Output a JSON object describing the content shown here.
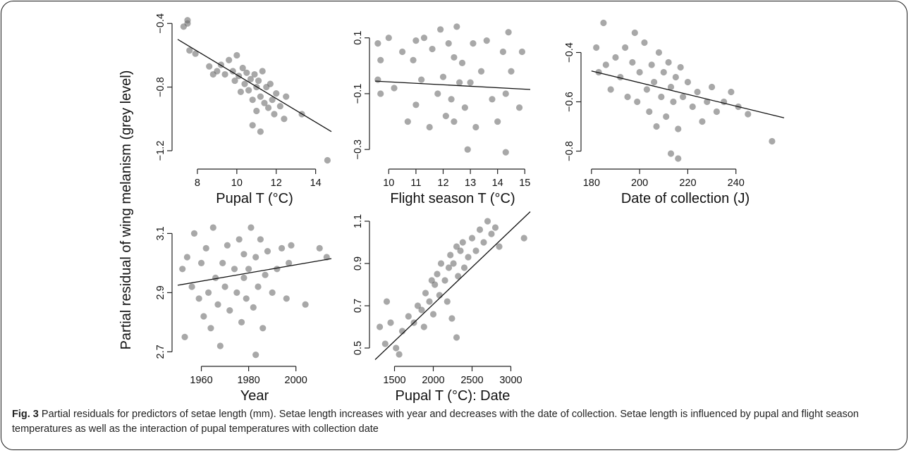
{
  "figure": {
    "ylabel": "Partial residual of wing melanism (grey level)",
    "caption_label": "Fig. 3",
    "caption_text": " Partial residuals for predictors of setae length (mm). Setae length increases with year and decreases with the date of collection. Setae length is influenced by pupal and flight season temperatures as well as the interaction of pupal temperatures with collection date"
  },
  "colors": {
    "point": "#6e6e6e",
    "line": "#111111",
    "axis": "#222222"
  },
  "chart_data": [
    {
      "id": "pupal",
      "type": "scatter",
      "xlabel": "Pupal T (°C)",
      "xlim": [
        7,
        14.8
      ],
      "ylim": [
        -1.28,
        -0.35
      ],
      "xticks": [
        8,
        10,
        12,
        14
      ],
      "xtick_labels": [
        "8",
        "10",
        "12",
        "14"
      ],
      "yticks": [
        -0.4,
        -0.8,
        -1.2
      ],
      "ytick_labels": [
        "−0.4",
        "−0.8",
        "−1.2"
      ],
      "fit_line": [
        [
          7,
          -0.5
        ],
        [
          14.8,
          -1.08
        ]
      ],
      "points": [
        [
          7.3,
          -0.42
        ],
        [
          7.5,
          -0.38
        ],
        [
          7.5,
          -0.4
        ],
        [
          7.6,
          -0.57
        ],
        [
          7.9,
          -0.59
        ],
        [
          8.6,
          -0.67
        ],
        [
          8.8,
          -0.72
        ],
        [
          9.0,
          -0.7
        ],
        [
          9.2,
          -0.66
        ],
        [
          9.4,
          -0.72
        ],
        [
          9.6,
          -0.63
        ],
        [
          9.8,
          -0.7
        ],
        [
          9.9,
          -0.76
        ],
        [
          10.0,
          -0.6
        ],
        [
          10.1,
          -0.73
        ],
        [
          10.2,
          -0.83
        ],
        [
          10.3,
          -0.68
        ],
        [
          10.4,
          -0.78
        ],
        [
          10.5,
          -0.71
        ],
        [
          10.6,
          -0.82
        ],
        [
          10.7,
          -0.75
        ],
        [
          10.8,
          -0.88
        ],
        [
          10.9,
          -0.72
        ],
        [
          11.0,
          -0.8
        ],
        [
          11.0,
          -0.95
        ],
        [
          11.1,
          -0.76
        ],
        [
          11.2,
          -0.86
        ],
        [
          11.3,
          -0.7
        ],
        [
          11.4,
          -0.9
        ],
        [
          11.5,
          -0.8
        ],
        [
          11.6,
          -0.93
        ],
        [
          11.7,
          -0.78
        ],
        [
          11.8,
          -0.88
        ],
        [
          11.9,
          -0.97
        ],
        [
          12.0,
          -0.84
        ],
        [
          12.2,
          -0.92
        ],
        [
          12.4,
          -1.0
        ],
        [
          12.5,
          -0.86
        ],
        [
          13.3,
          -0.97
        ],
        [
          10.8,
          -1.04
        ],
        [
          11.2,
          -1.08
        ],
        [
          14.6,
          -1.26
        ]
      ]
    },
    {
      "id": "flight",
      "type": "scatter",
      "xlabel": "Flight season T (°C)",
      "xlim": [
        9.5,
        15.2
      ],
      "ylim": [
        -0.35,
        0.18
      ],
      "xticks": [
        10,
        11,
        12,
        13,
        14,
        15
      ],
      "xtick_labels": [
        "10",
        "11",
        "12",
        "13",
        "14",
        "15"
      ],
      "yticks": [
        0.1,
        -0.1,
        -0.3
      ],
      "ytick_labels": [
        "0.1",
        "−0.1",
        "−0.3"
      ],
      "fit_line": [
        [
          9.5,
          -0.055
        ],
        [
          15.2,
          -0.085
        ]
      ],
      "points": [
        [
          9.6,
          0.08
        ],
        [
          9.6,
          -0.05
        ],
        [
          9.7,
          -0.1
        ],
        [
          9.7,
          0.02
        ],
        [
          10.0,
          0.1
        ],
        [
          10.2,
          -0.08
        ],
        [
          10.5,
          0.05
        ],
        [
          10.7,
          -0.2
        ],
        [
          10.9,
          0.02
        ],
        [
          11.0,
          0.09
        ],
        [
          11.0,
          -0.14
        ],
        [
          11.2,
          -0.05
        ],
        [
          11.3,
          0.1
        ],
        [
          11.5,
          -0.22
        ],
        [
          11.6,
          0.06
        ],
        [
          11.8,
          -0.1
        ],
        [
          11.9,
          0.13
        ],
        [
          12.0,
          -0.04
        ],
        [
          12.1,
          -0.18
        ],
        [
          12.2,
          0.08
        ],
        [
          12.3,
          -0.12
        ],
        [
          12.4,
          0.03
        ],
        [
          12.4,
          -0.2
        ],
        [
          12.5,
          0.14
        ],
        [
          12.6,
          -0.06
        ],
        [
          12.7,
          0.01
        ],
        [
          12.8,
          -0.15
        ],
        [
          12.9,
          -0.3
        ],
        [
          13.0,
          -0.06
        ],
        [
          13.1,
          0.08
        ],
        [
          13.2,
          -0.22
        ],
        [
          13.4,
          -0.02
        ],
        [
          13.6,
          0.09
        ],
        [
          13.8,
          -0.12
        ],
        [
          14.0,
          -0.2
        ],
        [
          14.2,
          0.05
        ],
        [
          14.3,
          -0.1
        ],
        [
          14.4,
          0.12
        ],
        [
          14.5,
          -0.02
        ],
        [
          14.8,
          -0.15
        ],
        [
          14.9,
          0.05
        ],
        [
          14.3,
          -0.31
        ]
      ]
    },
    {
      "id": "date",
      "type": "scatter",
      "xlabel": "Date of collection (J)",
      "xlim": [
        178,
        260
      ],
      "ylim": [
        -0.85,
        -0.25
      ],
      "xticks": [
        180,
        200,
        220,
        240
      ],
      "xtick_labels": [
        "180",
        "200",
        "220",
        "240"
      ],
      "yticks": [
        -0.4,
        -0.6,
        -0.8
      ],
      "ytick_labels": [
        "−0.4",
        "−0.6",
        "−0.8"
      ],
      "fit_line": [
        [
          180,
          -0.475
        ],
        [
          260,
          -0.665
        ]
      ],
      "points": [
        [
          182,
          -0.38
        ],
        [
          183,
          -0.48
        ],
        [
          185,
          -0.28
        ],
        [
          186,
          -0.45
        ],
        [
          188,
          -0.55
        ],
        [
          190,
          -0.42
        ],
        [
          192,
          -0.5
        ],
        [
          194,
          -0.38
        ],
        [
          195,
          -0.58
        ],
        [
          197,
          -0.44
        ],
        [
          198,
          -0.32
        ],
        [
          199,
          -0.6
        ],
        [
          200,
          -0.48
        ],
        [
          202,
          -0.36
        ],
        [
          203,
          -0.55
        ],
        [
          204,
          -0.64
        ],
        [
          205,
          -0.45
        ],
        [
          206,
          -0.52
        ],
        [
          207,
          -0.7
        ],
        [
          208,
          -0.4
        ],
        [
          209,
          -0.58
        ],
        [
          210,
          -0.48
        ],
        [
          211,
          -0.66
        ],
        [
          212,
          -0.44
        ],
        [
          213,
          -0.54
        ],
        [
          214,
          -0.6
        ],
        [
          215,
          -0.5
        ],
        [
          216,
          -0.71
        ],
        [
          217,
          -0.46
        ],
        [
          218,
          -0.58
        ],
        [
          220,
          -0.52
        ],
        [
          222,
          -0.62
        ],
        [
          224,
          -0.56
        ],
        [
          226,
          -0.68
        ],
        [
          228,
          -0.6
        ],
        [
          230,
          -0.54
        ],
        [
          232,
          -0.64
        ],
        [
          235,
          -0.6
        ],
        [
          238,
          -0.56
        ],
        [
          241,
          -0.62
        ],
        [
          245,
          -0.65
        ],
        [
          255,
          -0.76
        ],
        [
          213,
          -0.81
        ],
        [
          216,
          -0.83
        ]
      ]
    },
    {
      "id": "year",
      "type": "scatter",
      "xlabel": "Year",
      "xlim": [
        1950,
        2015
      ],
      "ylim": [
        2.67,
        3.17
      ],
      "xticks": [
        1960,
        1980,
        2000
      ],
      "xtick_labels": [
        "1960",
        "1980",
        "2000"
      ],
      "yticks": [
        3.1,
        2.9,
        2.7
      ],
      "ytick_labels": [
        "3.1",
        "2.9",
        "2.7"
      ],
      "fit_line": [
        [
          1950,
          2.925
        ],
        [
          2015,
          3.015
        ]
      ],
      "points": [
        [
          1952,
          2.98
        ],
        [
          1953,
          2.75
        ],
        [
          1954,
          3.02
        ],
        [
          1956,
          2.92
        ],
        [
          1957,
          3.1
        ],
        [
          1959,
          2.88
        ],
        [
          1960,
          3.0
        ],
        [
          1961,
          2.82
        ],
        [
          1962,
          3.05
        ],
        [
          1963,
          2.9
        ],
        [
          1964,
          2.78
        ],
        [
          1965,
          3.12
        ],
        [
          1966,
          2.95
        ],
        [
          1967,
          2.86
        ],
        [
          1968,
          2.72
        ],
        [
          1969,
          3.0
        ],
        [
          1970,
          2.92
        ],
        [
          1971,
          3.06
        ],
        [
          1972,
          2.84
        ],
        [
          1974,
          2.98
        ],
        [
          1975,
          2.9
        ],
        [
          1976,
          3.08
        ],
        [
          1977,
          2.8
        ],
        [
          1978,
          2.95
        ],
        [
          1978,
          3.03
        ],
        [
          1979,
          2.88
        ],
        [
          1980,
          2.98
        ],
        [
          1981,
          3.12
        ],
        [
          1982,
          2.85
        ],
        [
          1983,
          3.02
        ],
        [
          1984,
          2.92
        ],
        [
          1985,
          3.08
        ],
        [
          1986,
          2.78
        ],
        [
          1987,
          2.96
        ],
        [
          1988,
          3.04
        ],
        [
          1990,
          2.9
        ],
        [
          1992,
          2.98
        ],
        [
          1994,
          3.05
        ],
        [
          1996,
          2.88
        ],
        [
          1997,
          3.0
        ],
        [
          1998,
          3.06
        ],
        [
          2004,
          2.86
        ],
        [
          2010,
          3.05
        ],
        [
          2013,
          3.02
        ],
        [
          1983,
          2.69
        ]
      ]
    },
    {
      "id": "interaction",
      "type": "scatter",
      "xlabel": "Pupal T (°C): Date",
      "xlim": [
        1250,
        3250
      ],
      "ylim": [
        0.44,
        1.14
      ],
      "xticks": [
        1500,
        2000,
        2500,
        3000
      ],
      "xtick_labels": [
        "1500",
        "2000",
        "2500",
        "3000"
      ],
      "yticks": [
        0.5,
        0.7,
        0.9,
        1.1
      ],
      "ytick_labels": [
        "0.5",
        "0.7",
        "0.9",
        "1.1"
      ],
      "fit_line": [
        [
          1250,
          0.445
        ],
        [
          3250,
          1.145
        ]
      ],
      "points": [
        [
          1310,
          0.6
        ],
        [
          1380,
          0.52
        ],
        [
          1400,
          0.72
        ],
        [
          1450,
          0.62
        ],
        [
          1520,
          0.5
        ],
        [
          1560,
          0.47
        ],
        [
          1600,
          0.58
        ],
        [
          1680,
          0.65
        ],
        [
          1750,
          0.62
        ],
        [
          1800,
          0.7
        ],
        [
          1850,
          0.68
        ],
        [
          1880,
          0.6
        ],
        [
          1900,
          0.76
        ],
        [
          1950,
          0.72
        ],
        [
          1980,
          0.82
        ],
        [
          2000,
          0.66
        ],
        [
          2020,
          0.8
        ],
        [
          2050,
          0.85
        ],
        [
          2080,
          0.75
        ],
        [
          2100,
          0.9
        ],
        [
          2150,
          0.82
        ],
        [
          2180,
          0.72
        ],
        [
          2200,
          0.88
        ],
        [
          2220,
          0.94
        ],
        [
          2240,
          0.64
        ],
        [
          2260,
          0.9
        ],
        [
          2300,
          0.98
        ],
        [
          2320,
          0.84
        ],
        [
          2350,
          0.96
        ],
        [
          2380,
          1.0
        ],
        [
          2400,
          0.88
        ],
        [
          2450,
          0.93
        ],
        [
          2500,
          1.02
        ],
        [
          2550,
          0.96
        ],
        [
          2600,
          1.06
        ],
        [
          2650,
          1.0
        ],
        [
          2700,
          1.1
        ],
        [
          2750,
          1.04
        ],
        [
          2800,
          1.07
        ],
        [
          2850,
          0.98
        ],
        [
          3170,
          1.02
        ],
        [
          2300,
          0.55
        ]
      ]
    }
  ]
}
